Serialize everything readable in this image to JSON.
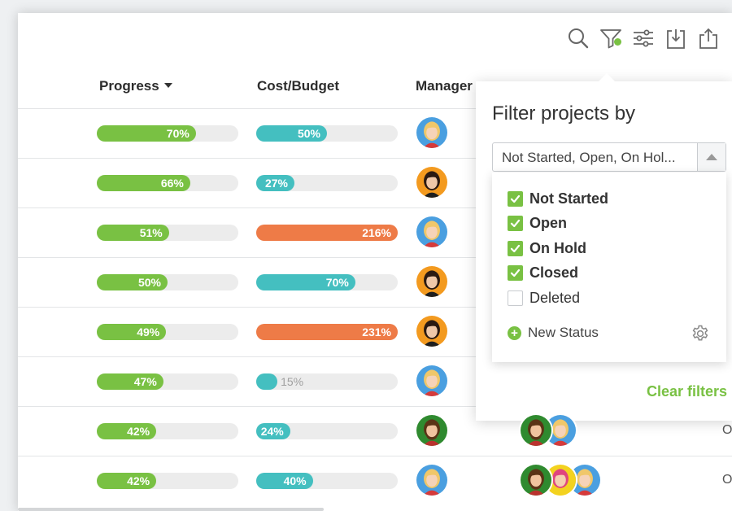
{
  "colors": {
    "green": "#79c143",
    "teal": "#44bfc0",
    "orange": "#ee7b47",
    "track": "#ececec"
  },
  "toolbar": {
    "icons": [
      "search-icon",
      "filter-icon",
      "sliders-icon",
      "download-icon",
      "share-icon"
    ]
  },
  "table": {
    "columns": {
      "progress": "Progress",
      "cost": "Cost/Budget",
      "manager": "Manager"
    },
    "sort": {
      "column": "progress",
      "direction": "descending"
    },
    "rows": [
      {
        "progress": 70,
        "progress_label": "70%",
        "cost": 50,
        "cost_label": "50%",
        "cost_status": "normal",
        "manager": "blonde-woman",
        "team": [],
        "trailing": ""
      },
      {
        "progress": 66,
        "progress_label": "66%",
        "cost": 27,
        "cost_label": "27%",
        "cost_status": "normal",
        "manager": "dark-hair-woman",
        "team": [],
        "trailing": ""
      },
      {
        "progress": 51,
        "progress_label": "51%",
        "cost": 216,
        "cost_label": "216%",
        "cost_status": "over",
        "manager": "blonde-woman",
        "team": [],
        "trailing": ""
      },
      {
        "progress": 50,
        "progress_label": "50%",
        "cost": 70,
        "cost_label": "70%",
        "cost_status": "normal",
        "manager": "dark-hair-woman",
        "team": [],
        "trailing": ""
      },
      {
        "progress": 49,
        "progress_label": "49%",
        "cost": 231,
        "cost_label": "231%",
        "cost_status": "over",
        "manager": "dark-hair-woman",
        "team": [],
        "trailing": ""
      },
      {
        "progress": 47,
        "progress_label": "47%",
        "cost": 15,
        "cost_label": "15%",
        "cost_status": "normal",
        "manager": "blonde-woman",
        "team": [],
        "trailing": ""
      },
      {
        "progress": 42,
        "progress_label": "42%",
        "cost": 24,
        "cost_label": "24%",
        "cost_status": "normal",
        "manager": "bearded-man",
        "team": [
          "bearded-man",
          "blonde-woman"
        ],
        "trailing": "O"
      },
      {
        "progress": 42,
        "progress_label": "42%",
        "cost": 40,
        "cost_label": "40%",
        "cost_status": "normal",
        "manager": "blonde-woman",
        "team": [
          "bearded-man",
          "pink-hair-woman",
          "blonde-woman"
        ],
        "trailing": "O"
      }
    ]
  },
  "filter_popup": {
    "title": "Filter projects by",
    "selected_summary": "Not Started, Open, On Hol...",
    "options": [
      {
        "label": "Not Started",
        "checked": true
      },
      {
        "label": "Open",
        "checked": true
      },
      {
        "label": "On Hold",
        "checked": true
      },
      {
        "label": "Closed",
        "checked": true
      },
      {
        "label": "Deleted",
        "checked": false
      }
    ],
    "new_status_label": "New Status",
    "clear_filters_label": "Clear filters"
  }
}
